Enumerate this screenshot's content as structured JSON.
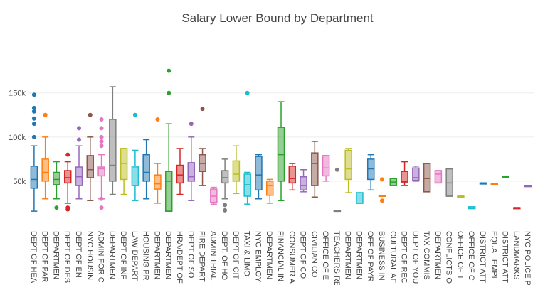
{
  "chart_data": {
    "type": "box",
    "title": "Salary Lower Bound by Department",
    "xlabel": "",
    "ylabel": "",
    "ylim": [
      0,
      215000
    ],
    "yticks": [
      {
        "value": 50000,
        "label": "50k"
      },
      {
        "value": 100000,
        "label": "100k"
      },
      {
        "value": 150000,
        "label": "150k"
      }
    ],
    "grid": true,
    "legend": "none",
    "categories": [
      {
        "label": "DEPT OF HEA",
        "color": "#1f77b4",
        "min": 16000,
        "q1": 42000,
        "median": 52000,
        "q3": 67000,
        "max": 90000,
        "outliers": [
          100000,
          115000,
          121000,
          129000,
          133000,
          148000
        ]
      },
      {
        "label": "DEPT OF PAR",
        "color": "#ff7f0e",
        "min": 30000,
        "q1": 50000,
        "median": 60000,
        "q3": 75000,
        "max": 100000,
        "outliers": [
          125000
        ]
      },
      {
        "label": "DEPARTMEN",
        "color": "#2ca02c",
        "min": 30000,
        "q1": 46000,
        "median": 52000,
        "q3": 60000,
        "max": 72000,
        "outliers": [
          20000
        ]
      },
      {
        "label": "DEPT OF DES",
        "color": "#d62728",
        "min": 25000,
        "q1": 48000,
        "median": 54000,
        "q3": 62000,
        "max": 72000,
        "outliers": [
          80000,
          20000,
          18000
        ]
      },
      {
        "label": "DEPT OF EN",
        "color": "#9467bd",
        "min": 30000,
        "q1": 45000,
        "median": 55000,
        "q3": 66000,
        "max": 90000,
        "outliers": [
          97000,
          110000
        ]
      },
      {
        "label": "NYC HOUSIN",
        "color": "#8c564b",
        "min": 28000,
        "q1": 54000,
        "median": 63000,
        "q3": 79000,
        "max": 100000,
        "outliers": [
          125000
        ]
      },
      {
        "label": "ADMIN FOR C",
        "color": "#e377c2",
        "min": 30000,
        "q1": 56000,
        "median": 64000,
        "q3": 66000,
        "max": 80000,
        "outliers": [
          20000,
          30000,
          90000,
          95000,
          100000,
          110000,
          120000
        ]
      },
      {
        "label": "DEPARTMEN",
        "color": "#7f7f7f",
        "min": 35000,
        "q1": 50000,
        "median": 68000,
        "q3": 120000,
        "max": 157000,
        "outliers": []
      },
      {
        "label": "DEPT OF INF",
        "color": "#bcbd22",
        "min": 35000,
        "q1": 52000,
        "median": 70000,
        "q3": 87000,
        "max": 87000,
        "outliers": []
      },
      {
        "label": "LAW DEPART",
        "color": "#17becf",
        "min": 28000,
        "q1": 45000,
        "median": 65000,
        "q3": 67000,
        "max": 85000,
        "outliers": [
          125000
        ]
      },
      {
        "label": "HOUSING PR",
        "color": "#1f77b4",
        "min": 30000,
        "q1": 50000,
        "median": 60000,
        "q3": 80000,
        "max": 97000,
        "outliers": []
      },
      {
        "label": "DEPARTMEN",
        "color": "#ff7f0e",
        "min": 25000,
        "q1": 41000,
        "median": 47000,
        "q3": 57000,
        "max": 70000,
        "outliers": [
          120000
        ]
      },
      {
        "label": "DEPARTMEN",
        "color": "#2ca02c",
        "min": 16000,
        "q1": 16000,
        "median": 50000,
        "q3": 61000,
        "max": 115000,
        "outliers": [
          150000,
          175000
        ]
      },
      {
        "label": "HRA/DEPT OF",
        "color": "#d62728",
        "min": 35000,
        "q1": 48000,
        "median": 57000,
        "q3": 68000,
        "max": 87000,
        "outliers": []
      },
      {
        "label": "DEPT OF SO",
        "color": "#9467bd",
        "min": 28000,
        "q1": 50000,
        "median": 55000,
        "q3": 71000,
        "max": 100000,
        "outliers": [
          115000
        ]
      },
      {
        "label": "FIRE DEPART",
        "color": "#8c564b",
        "min": 45000,
        "q1": 61000,
        "median": 70000,
        "q3": 80000,
        "max": 87000,
        "outliers": [
          132000
        ]
      },
      {
        "label": "ADMIN TRIAL",
        "color": "#e377c2",
        "min": 24000,
        "q1": 26000,
        "median": 33000,
        "q3": 41000,
        "max": 43000,
        "outliers": []
      },
      {
        "label": "DEPT. OF HO",
        "color": "#7f7f7f",
        "min": 30000,
        "q1": 48000,
        "median": 54000,
        "q3": 62000,
        "max": 75000,
        "outliers": [
          17000,
          23000
        ]
      },
      {
        "label": "DEPT OF CIT",
        "color": "#bcbd22",
        "min": 36000,
        "q1": 50000,
        "median": 58000,
        "q3": 73000,
        "max": 90000,
        "outliers": []
      },
      {
        "label": "TAXI & LIMO",
        "color": "#17becf",
        "min": 24000,
        "q1": 33000,
        "median": 46000,
        "q3": 58000,
        "max": 60000,
        "outliers": [
          150000
        ]
      },
      {
        "label": "NYC EMPLOY",
        "color": "#1f77b4",
        "min": 30000,
        "q1": 40000,
        "median": 57000,
        "q3": 78000,
        "max": 80000,
        "outliers": []
      },
      {
        "label": "DEPARTMEN",
        "color": "#ff7f0e",
        "min": 25000,
        "q1": 34000,
        "median": 45000,
        "q3": 50000,
        "max": 52000,
        "outliers": []
      },
      {
        "label": "FINANCIAL IN",
        "color": "#2ca02c",
        "min": 28000,
        "q1": 50000,
        "median": 80000,
        "q3": 111000,
        "max": 140000,
        "outliers": []
      },
      {
        "label": "CONSUMER A",
        "color": "#d62728",
        "min": 40000,
        "q1": 48000,
        "median": 53000,
        "q3": 67000,
        "max": 70000,
        "outliers": []
      },
      {
        "label": "DEPT OF CO",
        "color": "#9467bd",
        "min": 38000,
        "q1": 40000,
        "median": 45000,
        "q3": 55000,
        "max": 63000,
        "outliers": []
      },
      {
        "label": "CIVILIAN CO",
        "color": "#8c564b",
        "min": 32000,
        "q1": 45000,
        "median": 70000,
        "q3": 82000,
        "max": 95000,
        "outliers": []
      },
      {
        "label": "OFFICE OF E",
        "color": "#e377c2",
        "min": 50000,
        "q1": 56000,
        "median": 65000,
        "q3": 79000,
        "max": 79000,
        "outliers": []
      },
      {
        "label": "TEACHERS RE",
        "color": "#7f7f7f",
        "min": 17000,
        "q1": 17000,
        "median": 17000,
        "q3": 17000,
        "max": 17000,
        "outliers": [
          63000
        ]
      },
      {
        "label": "DEPARTMEN",
        "color": "#bcbd22",
        "min": 37000,
        "q1": 52000,
        "median": 64000,
        "q3": 85000,
        "max": 87000,
        "outliers": []
      },
      {
        "label": "DEPARTMEN",
        "color": "#17becf",
        "min": 25000,
        "q1": 25000,
        "median": 25000,
        "q3": 37000,
        "max": 37000,
        "outliers": []
      },
      {
        "label": "OFF OF PAYR",
        "color": "#1f77b4",
        "min": 40000,
        "q1": 52000,
        "median": 64000,
        "q3": 75000,
        "max": 80000,
        "outliers": []
      },
      {
        "label": "BUSINESS IN",
        "color": "#ff7f0e",
        "min": 34000,
        "q1": 34000,
        "median": 34000,
        "q3": 34000,
        "max": 34000,
        "outliers": [
          28000,
          52000
        ]
      },
      {
        "label": "CULTURAL AF",
        "color": "#2ca02c",
        "min": 45000,
        "q1": 45000,
        "median": 49000,
        "q3": 53000,
        "max": 53000,
        "outliers": []
      },
      {
        "label": "DEPT OF REC",
        "color": "#d62728",
        "min": 45000,
        "q1": 49000,
        "median": 50000,
        "q3": 61000,
        "max": 72000,
        "outliers": []
      },
      {
        "label": "DEPT OF YOU",
        "color": "#9467bd",
        "min": 50000,
        "q1": 51000,
        "median": 54000,
        "q3": 65000,
        "max": 67000,
        "outliers": []
      },
      {
        "label": "TAX COMMIS",
        "color": "#8c564b",
        "min": 38000,
        "q1": 38000,
        "median": 53000,
        "q3": 70000,
        "max": 70000,
        "outliers": []
      },
      {
        "label": "DEPARTMEN",
        "color": "#e377c2",
        "min": 48000,
        "q1": 48000,
        "median": 58000,
        "q3": 62000,
        "max": 62000,
        "outliers": []
      },
      {
        "label": "CONFLICTS O",
        "color": "#7f7f7f",
        "min": 33000,
        "q1": 33000,
        "median": 48000,
        "q3": 64000,
        "max": 64000,
        "outliers": []
      },
      {
        "label": "OFFICE OF T",
        "color": "#bcbd22",
        "min": 33000,
        "q1": 33000,
        "median": 33000,
        "q3": 33000,
        "max": 33000,
        "outliers": []
      },
      {
        "label": "OFFICE OF C",
        "color": "#17becf",
        "min": 19000,
        "q1": 19000,
        "median": 19000,
        "q3": 21000,
        "max": 21000,
        "outliers": []
      },
      {
        "label": "DISTRICT ATT",
        "color": "#1f77b4",
        "min": 48000,
        "q1": 48000,
        "median": 48000,
        "q3": 48000,
        "max": 48000,
        "outliers": []
      },
      {
        "label": "EQUAL EMPL",
        "color": "#ff7f0e",
        "min": 47000,
        "q1": 47000,
        "median": 47000,
        "q3": 47000,
        "max": 47000,
        "outliers": []
      },
      {
        "label": "DISTRICT ATT",
        "color": "#2ca02c",
        "min": 55000,
        "q1": 55000,
        "median": 55000,
        "q3": 55000,
        "max": 55000,
        "outliers": []
      },
      {
        "label": "LANDMARKS",
        "color": "#d62728",
        "min": 20000,
        "q1": 20000,
        "median": 20000,
        "q3": 20000,
        "max": 20000,
        "outliers": []
      },
      {
        "label": "NYC POLICE P",
        "color": "#9467bd",
        "min": 45000,
        "q1": 45000,
        "median": 45000,
        "q3": 45000,
        "max": 45000,
        "outliers": []
      }
    ]
  }
}
